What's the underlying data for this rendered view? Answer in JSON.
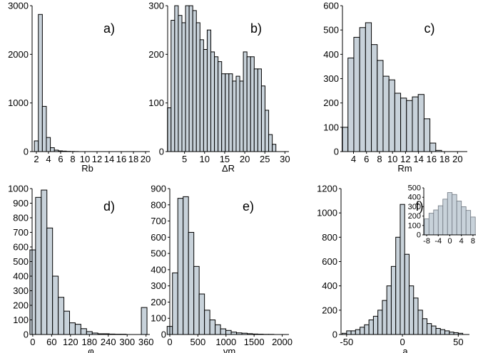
{
  "chart_data": [
    {
      "type": "bar",
      "panel_label": "a)",
      "xlabel": "Rb",
      "ylabel": "",
      "xlim": [
        1.3,
        20.7
      ],
      "ylim": [
        0,
        3000
      ],
      "xticks": [
        2,
        4,
        6,
        8,
        10,
        12,
        14,
        16,
        18,
        20
      ],
      "yticks": [
        0,
        1000,
        2000,
        3000
      ],
      "bin_width": 0.66,
      "x": [
        2.0,
        2.66,
        3.32,
        3.98,
        4.64,
        5.3,
        5.96,
        6.62,
        7.28,
        7.94,
        8.6
      ],
      "values": [
        220,
        2820,
        930,
        290,
        80,
        30,
        15,
        10,
        5,
        3,
        2
      ],
      "grid": false
    },
    {
      "type": "bar",
      "panel_label": "b)",
      "xlabel": "ΔR",
      "ylabel": "",
      "xlim": [
        0.8,
        31
      ],
      "ylim": [
        0,
        300
      ],
      "xticks": [
        5,
        10,
        15,
        20,
        25,
        30
      ],
      "yticks": [
        0,
        100,
        200,
        300
      ],
      "bin_width": 0.9,
      "x": [
        1.2,
        2.1,
        3.0,
        3.9,
        4.8,
        5.7,
        6.6,
        7.5,
        8.4,
        9.3,
        10.2,
        11.1,
        12.0,
        12.9,
        13.8,
        14.7,
        15.6,
        16.5,
        17.4,
        18.3,
        19.2,
        20.1,
        21.0,
        21.9,
        22.8,
        23.7,
        24.6,
        25.5,
        26.4,
        27.3
      ],
      "values": [
        90,
        270,
        300,
        280,
        265,
        300,
        300,
        290,
        265,
        230,
        210,
        250,
        205,
        195,
        185,
        160,
        160,
        160,
        145,
        155,
        145,
        205,
        195,
        195,
        170,
        170,
        135,
        85,
        35,
        15
      ],
      "grid": false
    },
    {
      "type": "bar",
      "panel_label": "c)",
      "xlabel": "Rm",
      "ylabel": "",
      "xlim": [
        2.3,
        21.5
      ],
      "ylim": [
        0,
        600
      ],
      "xticks": [
        4,
        6,
        8,
        10,
        12,
        14,
        16,
        18,
        20
      ],
      "yticks": [
        0,
        100,
        200,
        300,
        400,
        500,
        600
      ],
      "bin_width": 0.9,
      "x": [
        2.7,
        3.6,
        4.5,
        5.4,
        6.3,
        7.2,
        8.1,
        9.0,
        9.9,
        10.8,
        11.7,
        12.6,
        13.5,
        14.4,
        15.3,
        16.2,
        17.1,
        18.0
      ],
      "values": [
        100,
        385,
        470,
        510,
        530,
        440,
        375,
        310,
        295,
        240,
        220,
        210,
        225,
        235,
        135,
        35,
        5,
        0
      ],
      "grid": false
    },
    {
      "type": "bar",
      "panel_label": "d)",
      "xlabel": "φ",
      "ylabel": "",
      "xlim": [
        -2,
        372
      ],
      "ylim": [
        0,
        1000
      ],
      "xticks": [
        0,
        60,
        120,
        180,
        240,
        300,
        360
      ],
      "yticks": [
        0,
        100,
        200,
        300,
        400,
        500,
        600,
        700,
        800,
        900,
        1000
      ],
      "bin_width": 18,
      "x": [
        0,
        18,
        36,
        54,
        72,
        90,
        108,
        126,
        144,
        162,
        180,
        198,
        216,
        234,
        252,
        270,
        288,
        306,
        324,
        342,
        354
      ],
      "values": [
        580,
        940,
        990,
        730,
        400,
        255,
        160,
        80,
        70,
        40,
        20,
        10,
        5,
        5,
        3,
        2,
        2,
        0,
        0,
        0,
        185
      ],
      "grid": false
    },
    {
      "type": "bar",
      "panel_label": "e)",
      "xlabel": "vm",
      "ylabel": "",
      "xlim": [
        0,
        2120
      ],
      "ylim": [
        0,
        900
      ],
      "xticks": [
        0,
        500,
        1000,
        1500,
        2000
      ],
      "yticks": [
        0,
        100,
        200,
        300,
        400,
        500,
        600,
        700,
        800,
        900
      ],
      "bin_width": 95,
      "x": [
        0,
        95,
        190,
        285,
        380,
        475,
        570,
        665,
        760,
        855,
        950,
        1045,
        1140,
        1235,
        1330,
        1425,
        1520,
        1615,
        1710,
        1805,
        1900
      ],
      "values": [
        50,
        380,
        840,
        850,
        630,
        420,
        250,
        150,
        90,
        60,
        35,
        25,
        15,
        10,
        8,
        5,
        3,
        2,
        1,
        1,
        0
      ],
      "grid": false
    },
    {
      "type": "bar",
      "panel_label": "f)",
      "xlabel": "a",
      "ylabel": "",
      "xlim": [
        -55,
        60
      ],
      "ylim": [
        0,
        1200
      ],
      "xticks": [
        -50,
        0,
        50
      ],
      "yticks": [
        0,
        200,
        400,
        600,
        800,
        1000,
        1200
      ],
      "bin_width": 4,
      "x": [
        -52,
        -48,
        -44,
        -40,
        -36,
        -32,
        -28,
        -24,
        -20,
        -16,
        -12,
        -8,
        -4,
        0,
        4,
        8,
        12,
        16,
        20,
        24,
        28,
        32,
        36,
        40,
        44,
        48,
        52
      ],
      "values": [
        10,
        30,
        30,
        40,
        60,
        80,
        120,
        150,
        200,
        280,
        400,
        560,
        800,
        1070,
        660,
        400,
        300,
        200,
        130,
        90,
        70,
        50,
        40,
        30,
        20,
        15,
        10
      ],
      "grid": false,
      "inset": {
        "type": "bar",
        "xlim": [
          -9,
          9
        ],
        "ylim": [
          0,
          500
        ],
        "xticks": [
          -8,
          -4,
          0,
          4,
          8
        ],
        "yticks": [
          0,
          100,
          200,
          300,
          400,
          500
        ],
        "bin_width": 1.6,
        "x": [
          -8,
          -6.4,
          -4.8,
          -3.2,
          -1.6,
          0,
          1.6,
          3.2,
          4.8,
          6.4,
          8
        ],
        "values": [
          170,
          230,
          265,
          310,
          380,
          450,
          430,
          360,
          300,
          260,
          190
        ]
      }
    }
  ]
}
